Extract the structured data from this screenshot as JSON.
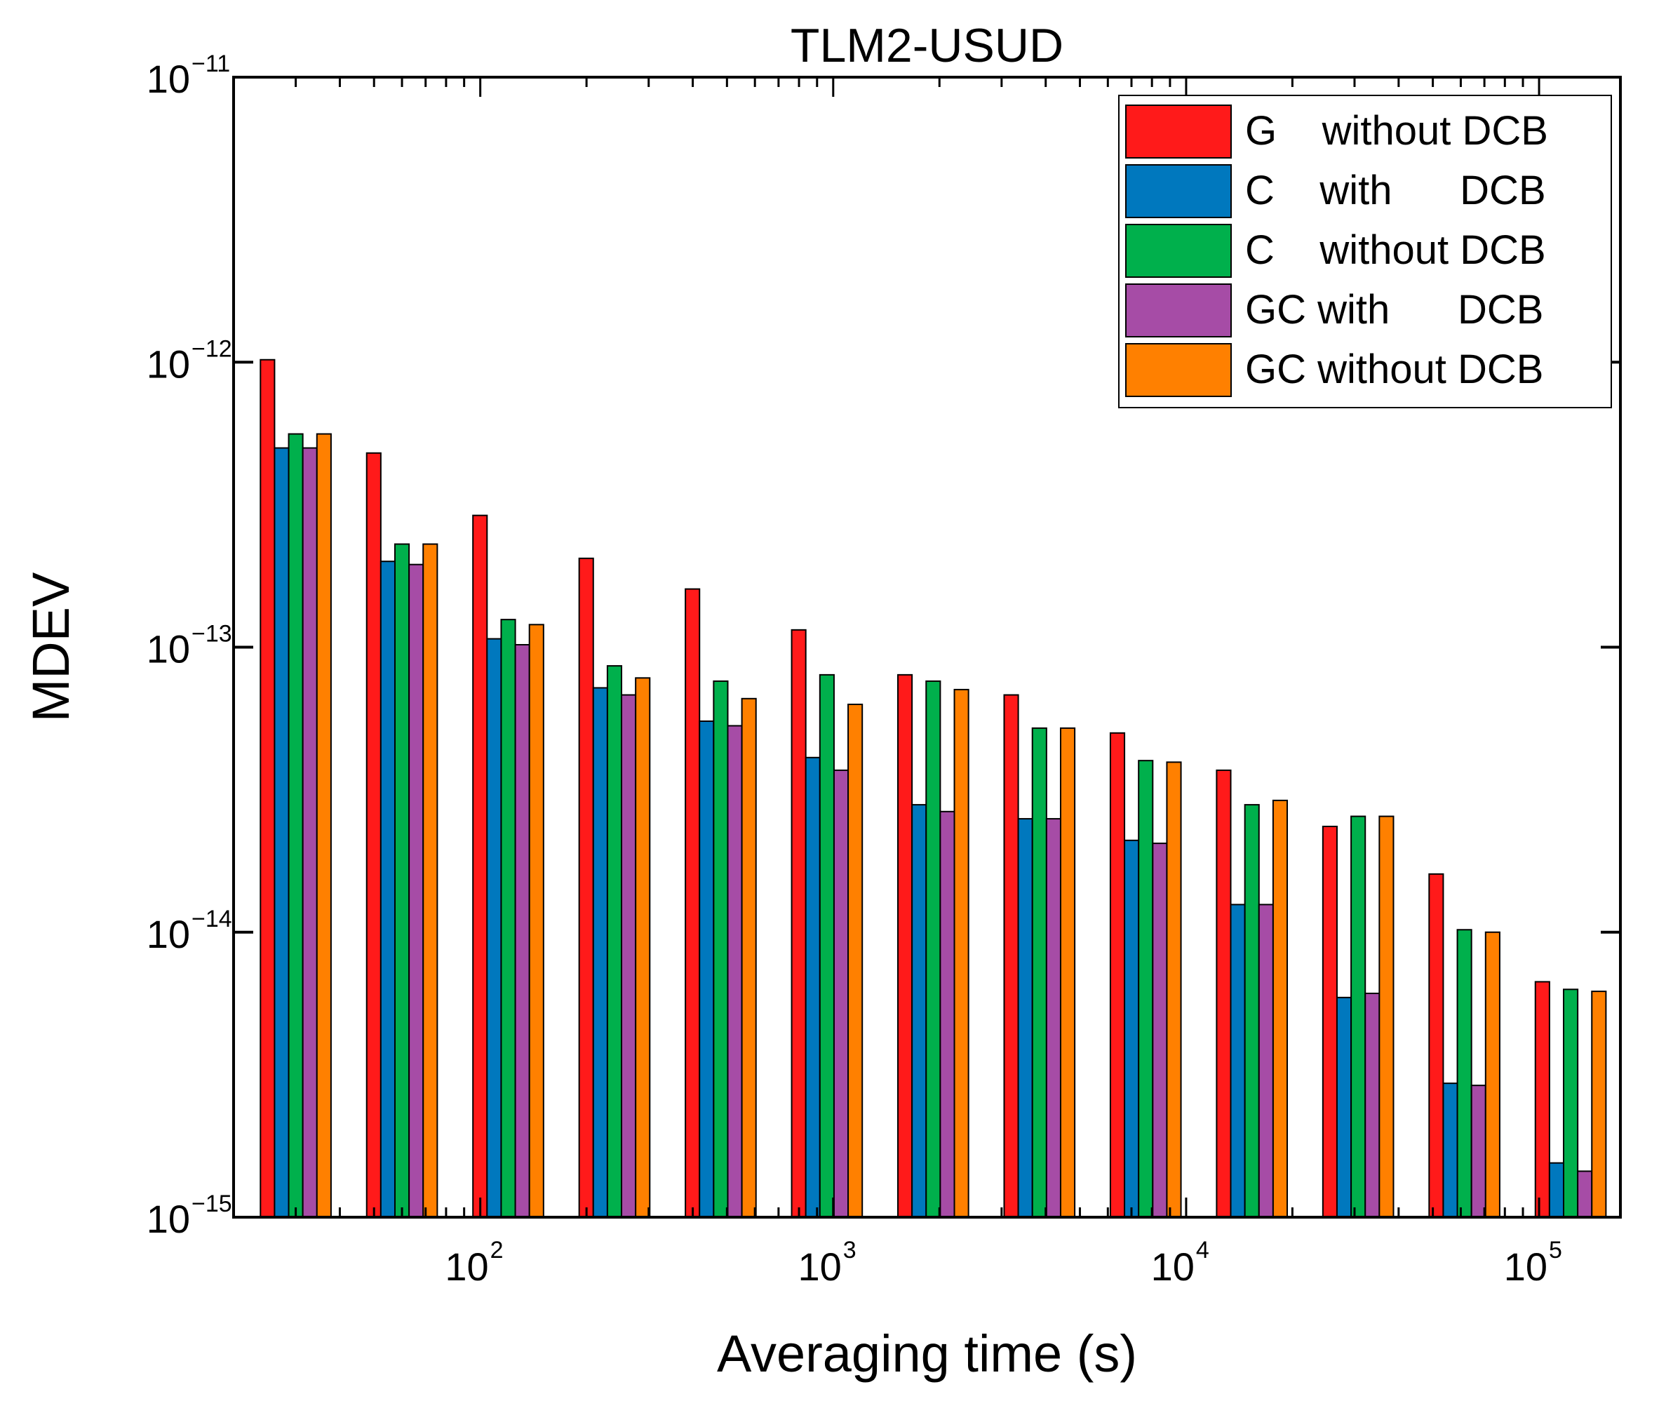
{
  "chart_data": {
    "type": "bar",
    "title": "TLM2-USUD",
    "xlabel": "Averaging time (s)",
    "ylabel": "MDEV",
    "xscale": "log",
    "yscale": "log",
    "xlim": [
      20,
      170000
    ],
    "ylim": [
      1e-15,
      1e-11
    ],
    "x_ticks": [
      {
        "base": "10",
        "exp": "2",
        "value": 100
      },
      {
        "base": "10",
        "exp": "3",
        "value": 1000
      },
      {
        "base": "10",
        "exp": "4",
        "value": 10000
      },
      {
        "base": "10",
        "exp": "5",
        "value": 100000
      }
    ],
    "y_ticks": [
      {
        "base": "10",
        "exp": "−11",
        "value": 1e-11
      },
      {
        "base": "10",
        "exp": "−12",
        "value": 1e-12
      },
      {
        "base": "10",
        "exp": "−13",
        "value": 1e-13
      },
      {
        "base": "10",
        "exp": "−14",
        "value": 1e-14
      },
      {
        "base": "10",
        "exp": "−15",
        "value": 1e-15
      }
    ],
    "legend_position": "top-right",
    "legend": [
      {
        "label": "G    without DCB",
        "color": "#ff1a1a"
      },
      {
        "label": "C    with      DCB",
        "color": "#0078be"
      },
      {
        "label": "C    without DCB",
        "color": "#00b04c"
      },
      {
        "label": "GC with      DCB",
        "color": "#a64ca6"
      },
      {
        "label": "GC without DCB",
        "color": "#ff8000"
      }
    ],
    "categories": [
      30,
      60,
      120,
      240,
      480,
      960,
      1920,
      3840,
      7680,
      15360,
      30720,
      61440,
      122880
    ],
    "series": [
      {
        "name": "G without DCB",
        "color": "#ff1a1a",
        "values": [
          1.02e-12,
          4.8e-13,
          2.9e-13,
          2.05e-13,
          1.6e-13,
          1.15e-13,
          8e-14,
          6.8e-14,
          5e-14,
          3.7e-14,
          2.35e-14,
          1.6e-14,
          6.7e-15
        ]
      },
      {
        "name": "C with DCB",
        "color": "#0078be",
        "values": [
          5e-13,
          2e-13,
          1.07e-13,
          7.2e-14,
          5.5e-14,
          4.1e-14,
          2.8e-14,
          2.5e-14,
          2.1e-14,
          1.25e-14,
          5.9e-15,
          2.95e-15,
          1.55e-15
        ]
      },
      {
        "name": "C without DCB",
        "color": "#00b04c",
        "values": [
          5.6e-13,
          2.3e-13,
          1.25e-13,
          8.6e-14,
          7.6e-14,
          8e-14,
          7.6e-14,
          5.2e-14,
          4e-14,
          2.8e-14,
          2.55e-14,
          1.02e-14,
          6.3e-15
        ]
      },
      {
        "name": "GC with DCB",
        "color": "#a64ca6",
        "values": [
          5e-13,
          1.95e-13,
          1.02e-13,
          6.8e-14,
          5.3e-14,
          3.7e-14,
          2.65e-14,
          2.5e-14,
          2.05e-14,
          1.25e-14,
          6.1e-15,
          2.9e-15,
          1.45e-15
        ]
      },
      {
        "name": "GC without DCB",
        "color": "#ff8000",
        "values": [
          5.6e-13,
          2.3e-13,
          1.2e-13,
          7.8e-14,
          6.6e-14,
          6.3e-14,
          7.1e-14,
          5.2e-14,
          3.95e-14,
          2.9e-14,
          2.55e-14,
          1e-14,
          6.2e-15
        ]
      }
    ]
  }
}
